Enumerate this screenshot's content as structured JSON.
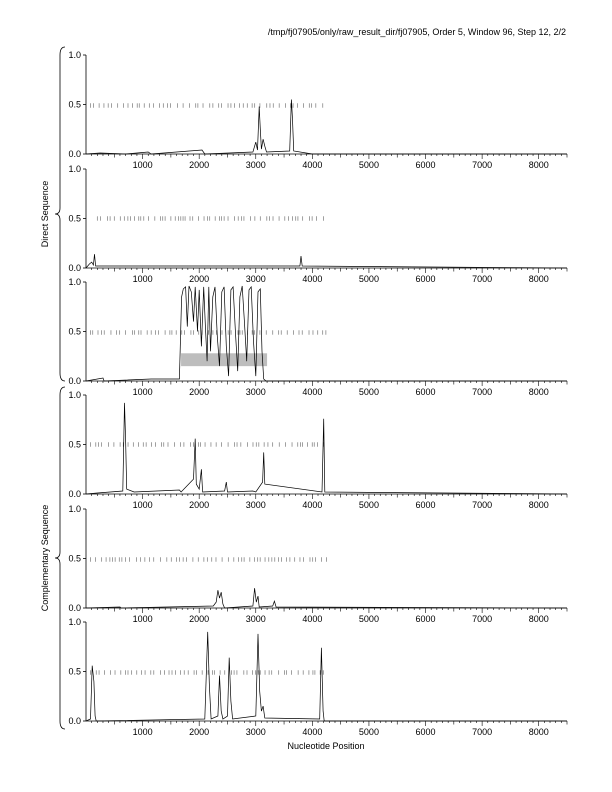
{
  "header": {
    "title": "/tmp/fj07905/only/raw_result_dir/fj07905, Order 5, Window 96, Step 12, 2/2"
  },
  "groups": [
    {
      "label": "Direct Sequence",
      "panels": [
        0,
        1,
        2
      ]
    },
    {
      "label": "Complementary Sequence",
      "panels": [
        3,
        4,
        5
      ]
    }
  ],
  "chart_data": {
    "type": "line",
    "title": "/tmp/fj07905/only/raw_result_dir/fj07905, Order 5, Window 96, Step 12, 2/2",
    "xlabel": "Nucleotide Position",
    "ylabel": "",
    "xlim": [
      0,
      8500
    ],
    "ylim": [
      0,
      1
    ],
    "x_ticks": [
      1000,
      2000,
      3000,
      4000,
      5000,
      6000,
      7000,
      8000
    ],
    "y_ticks": [
      0.0,
      0.5,
      1.0
    ],
    "y_tick_labels": [
      "0.0",
      "0.5",
      "1.0"
    ],
    "grid": false,
    "panels": [
      {
        "name": "",
        "series": [
          [
            0,
            0
          ],
          [
            250,
            0.01
          ],
          [
            700,
            0
          ],
          [
            1100,
            0.02
          ],
          [
            1150,
            0
          ],
          [
            2050,
            0.04
          ],
          [
            2100,
            0
          ],
          [
            2950,
            0.02
          ],
          [
            3000,
            0.12
          ],
          [
            3030,
            0.04
          ],
          [
            3060,
            0.48
          ],
          [
            3080,
            0.25
          ],
          [
            3100,
            0.05
          ],
          [
            3130,
            0.15
          ],
          [
            3160,
            0.08
          ],
          [
            3190,
            0.02
          ],
          [
            3600,
            0.03
          ],
          [
            3630,
            0.55
          ],
          [
            3650,
            0.35
          ],
          [
            3670,
            0.03
          ],
          [
            4000,
            0
          ],
          [
            8500,
            0
          ]
        ],
        "marks_ranges": [
          [
            80,
            4280
          ]
        ],
        "marks_y": 0.49,
        "highlight": null
      },
      {
        "name": "",
        "series": [
          [
            0,
            0
          ],
          [
            60,
            0.04
          ],
          [
            100,
            0.06
          ],
          [
            130,
            0.03
          ],
          [
            150,
            0.14
          ],
          [
            170,
            0.02
          ],
          [
            3780,
            0.02
          ],
          [
            3800,
            0.12
          ],
          [
            3820,
            0.02
          ],
          [
            8500,
            0
          ]
        ],
        "marks_ranges": [
          [
            200,
            4230
          ]
        ],
        "marks_y": 0.5,
        "highlight": null
      },
      {
        "name": "",
        "series": [
          [
            0,
            0
          ],
          [
            300,
            0.03
          ],
          [
            320,
            0
          ],
          [
            1150,
            0.02
          ],
          [
            1650,
            0.02
          ],
          [
            1690,
            0.85
          ],
          [
            1720,
            0.93
          ],
          [
            1760,
            0.95
          ],
          [
            1790,
            0.55
          ],
          [
            1820,
            0.96
          ],
          [
            1860,
            0.9
          ],
          [
            1900,
            0.6
          ],
          [
            1930,
            0.95
          ],
          [
            1970,
            0.5
          ],
          [
            2000,
            0.92
          ],
          [
            2040,
            0.35
          ],
          [
            2080,
            0.95
          ],
          [
            2110,
            0.55
          ],
          [
            2140,
            0.2
          ],
          [
            2170,
            0.95
          ],
          [
            2200,
            0.3
          ],
          [
            2240,
            0.85
          ],
          [
            2280,
            0.95
          ],
          [
            2320,
            0.45
          ],
          [
            2360,
            0.15
          ],
          [
            2400,
            0.9
          ],
          [
            2440,
            0.95
          ],
          [
            2480,
            0.35
          ],
          [
            2520,
            0.05
          ],
          [
            2560,
            0.92
          ],
          [
            2600,
            0.95
          ],
          [
            2640,
            0.5
          ],
          [
            2680,
            0.1
          ],
          [
            2720,
            0.85
          ],
          [
            2760,
            0.96
          ],
          [
            2800,
            0.6
          ],
          [
            2840,
            0.2
          ],
          [
            2880,
            0.92
          ],
          [
            2920,
            0.95
          ],
          [
            2960,
            0.4
          ],
          [
            3000,
            0.05
          ],
          [
            3040,
            0.9
          ],
          [
            3080,
            0.93
          ],
          [
            3110,
            0.3
          ],
          [
            3140,
            0.02
          ],
          [
            3180,
            0
          ],
          [
            8500,
            0
          ]
        ],
        "marks_ranges": [
          [
            80,
            4280
          ]
        ],
        "marks_y": 0.49,
        "highlight": {
          "x": [
            1680,
            3200
          ],
          "y": [
            0.15,
            0.28
          ],
          "color": "#bdbdbd"
        }
      },
      {
        "name": "",
        "series": [
          [
            0,
            0
          ],
          [
            200,
            0.01
          ],
          [
            650,
            0.03
          ],
          [
            680,
            0.92
          ],
          [
            700,
            0.55
          ],
          [
            720,
            0.05
          ],
          [
            850,
            0.02
          ],
          [
            1650,
            0.04
          ],
          [
            1680,
            0.02
          ],
          [
            1900,
            0.15
          ],
          [
            1930,
            0.56
          ],
          [
            1950,
            0.1
          ],
          [
            2000,
            0.05
          ],
          [
            2040,
            0.25
          ],
          [
            2060,
            0.02
          ],
          [
            2450,
            0.03
          ],
          [
            2480,
            0.12
          ],
          [
            2500,
            0.02
          ],
          [
            2950,
            0.03
          ],
          [
            3000,
            0.02
          ],
          [
            3120,
            0.12
          ],
          [
            3140,
            0.42
          ],
          [
            3160,
            0.1
          ],
          [
            4170,
            0.02
          ],
          [
            4200,
            0.76
          ],
          [
            4220,
            0.02
          ],
          [
            8500,
            0
          ]
        ],
        "marks_ranges": [
          [
            80,
            4250
          ]
        ],
        "marks_y": 0.5,
        "highlight": null
      },
      {
        "name": "",
        "series": [
          [
            0,
            0
          ],
          [
            600,
            0.01
          ],
          [
            620,
            0
          ],
          [
            2250,
            0.02
          ],
          [
            2300,
            0.06
          ],
          [
            2330,
            0.18
          ],
          [
            2360,
            0.1
          ],
          [
            2390,
            0.16
          ],
          [
            2420,
            0.04
          ],
          [
            2450,
            0
          ],
          [
            2950,
            0.02
          ],
          [
            2980,
            0.2
          ],
          [
            3010,
            0.06
          ],
          [
            3040,
            0.12
          ],
          [
            3060,
            0.01
          ],
          [
            3300,
            0.02
          ],
          [
            3330,
            0.07
          ],
          [
            3360,
            0.01
          ],
          [
            8500,
            0
          ]
        ],
        "marks_ranges": [
          [
            80,
            4280
          ]
        ],
        "marks_y": 0.49,
        "highlight": null
      },
      {
        "name": "",
        "series": [
          [
            0,
            0
          ],
          [
            80,
            0.02
          ],
          [
            110,
            0.56
          ],
          [
            140,
            0.4
          ],
          [
            160,
            0.05
          ],
          [
            180,
            0
          ],
          [
            2100,
            0.02
          ],
          [
            2150,
            0.9
          ],
          [
            2180,
            0.35
          ],
          [
            2210,
            0.02
          ],
          [
            2330,
            0.05
          ],
          [
            2360,
            0.46
          ],
          [
            2390,
            0.1
          ],
          [
            2420,
            0.02
          ],
          [
            2500,
            0.05
          ],
          [
            2530,
            0.64
          ],
          [
            2560,
            0.2
          ],
          [
            2590,
            0.02
          ],
          [
            3000,
            0.05
          ],
          [
            3040,
            0.88
          ],
          [
            3070,
            0.3
          ],
          [
            3100,
            0.1
          ],
          [
            3130,
            0.15
          ],
          [
            3160,
            0.03
          ],
          [
            4130,
            0.02
          ],
          [
            4160,
            0.74
          ],
          [
            4190,
            0.1
          ],
          [
            4210,
            0
          ],
          [
            8500,
            0
          ]
        ],
        "marks_ranges": [
          [
            80,
            4250
          ]
        ],
        "marks_y": 0.49,
        "highlight": null
      }
    ]
  }
}
